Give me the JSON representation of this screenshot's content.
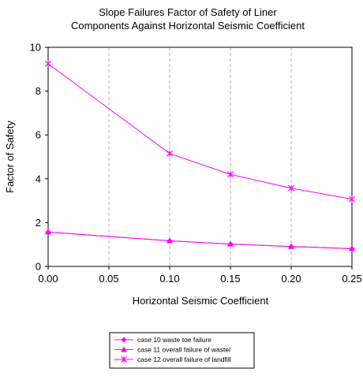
{
  "chart_data": {
    "type": "line",
    "title": [
      "Slope Failures Factor of Safety of Liner",
      "Components Against Horizontal Seismic Coefficient"
    ],
    "xlabel": "Horizontal Seismic Coefficient",
    "ylabel": "Factor of Safety",
    "xlim": [
      0,
      0.25
    ],
    "ylim": [
      0,
      10
    ],
    "xticks": [
      0,
      0.05,
      0.1,
      0.15,
      0.2,
      0.25
    ],
    "xtick_labels": [
      "0.00",
      "0.05",
      "0.10",
      "0.15",
      "0.20",
      "0.25"
    ],
    "yticks": [
      0,
      2,
      4,
      6,
      8,
      10
    ],
    "ytick_labels": [
      "0",
      "2",
      "4",
      "6",
      "8",
      "10"
    ],
    "grid": "vertical dashed",
    "legend_position": "bottom-center",
    "line_color": "#ff00ff",
    "series": [
      {
        "name": "case 10 waste toe failure",
        "marker": "diamond",
        "x": [
          0,
          0.1,
          0.15,
          0.2,
          0.25
        ],
        "y": [
          1.57,
          1.17,
          1.02,
          0.91,
          0.81
        ]
      },
      {
        "name": "case 11 overall failure of wastel",
        "marker": "triangle",
        "x": [
          0,
          0.1,
          0.15,
          0.2,
          0.25
        ],
        "y": [
          1.57,
          1.17,
          1.02,
          0.91,
          0.81
        ]
      },
      {
        "name": "case 12 overall failure of landfill",
        "marker": "asterisk",
        "x": [
          0,
          0.1,
          0.15,
          0.2,
          0.25
        ],
        "y": [
          9.25,
          5.15,
          4.2,
          3.57,
          3.07
        ]
      }
    ]
  }
}
